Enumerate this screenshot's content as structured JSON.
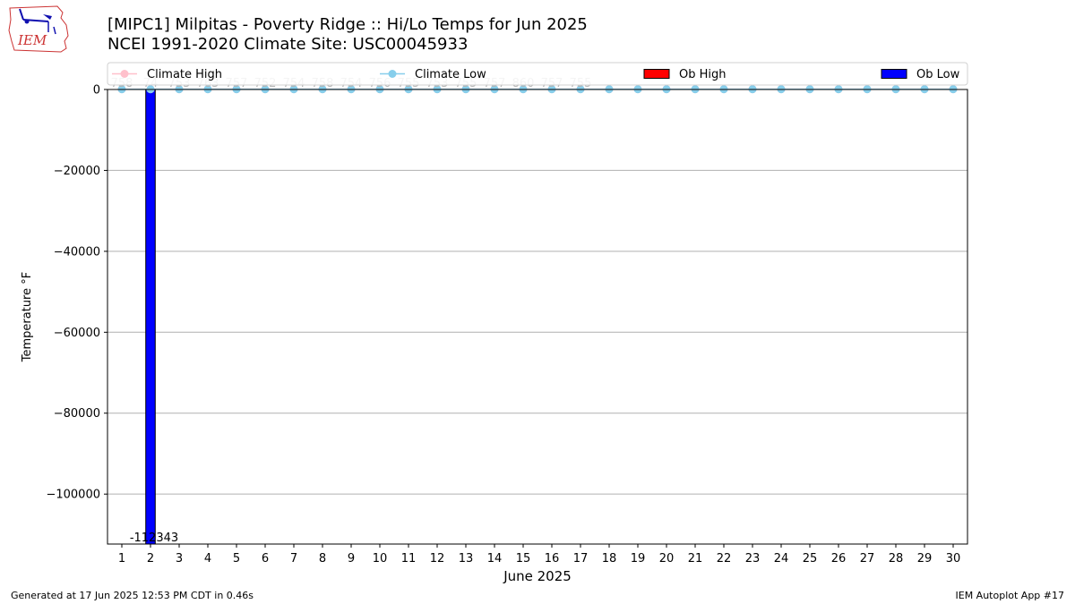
{
  "header": {
    "title": "[MIPC1] Milpitas - Poverty Ridge :: Hi/Lo Temps for Jun 2025",
    "subtitle": "NCEI 1991-2020 Climate Site: USC00045933"
  },
  "logo": {
    "text": "IEM"
  },
  "footer": {
    "generated": "Generated at 17 Jun 2025 12:53 PM CDT in 0.46s",
    "app": "IEM Autoplot App #17"
  },
  "colors": {
    "climate_high": "#ffc0cb",
    "climate_low": "#87ceeb",
    "ob_high": "#ff0000",
    "ob_low": "#0000ff",
    "grid": "#b0b0b0",
    "range_labels": "#b5b5b5"
  },
  "chart_data": {
    "type": "bar",
    "xlabel": "June 2025",
    "ylabel": "Temperature °F",
    "xlim": [
      0.5,
      30.5
    ],
    "ylim": [
      -112343,
      0
    ],
    "x_ticks": [
      1,
      2,
      3,
      4,
      5,
      6,
      7,
      8,
      9,
      10,
      11,
      12,
      13,
      14,
      15,
      16,
      17,
      18,
      19,
      20,
      21,
      22,
      23,
      24,
      25,
      26,
      27,
      28,
      29,
      30
    ],
    "y_ticks": [
      0,
      -20000,
      -40000,
      -60000,
      -80000,
      -100000
    ],
    "y_tick_labels": [
      "0",
      "−20000",
      "−40000",
      "−60000",
      "−80000",
      "−100000"
    ],
    "grid": "horizontal",
    "legend": {
      "placement": "top",
      "entries": [
        {
          "label": "Climate High",
          "kind": "line",
          "color": "#ffc0cb"
        },
        {
          "label": "Climate Low",
          "kind": "line",
          "color": "#87ceeb"
        },
        {
          "label": "Ob High",
          "kind": "bar",
          "color": "#ff0000"
        },
        {
          "label": "Ob Low",
          "kind": "bar",
          "color": "#0000ff"
        }
      ]
    },
    "series": [
      {
        "name": "Climate High",
        "kind": "line",
        "values": [
          74,
          74,
          74,
          74,
          74,
          74,
          74,
          74,
          74,
          74,
          74,
          74,
          74,
          74,
          74,
          75,
          75,
          75,
          75,
          75,
          75,
          75,
          75,
          75,
          75,
          75,
          75,
          75,
          75,
          75
        ]
      },
      {
        "name": "Climate Low",
        "kind": "line",
        "values": [
          56,
          56,
          56,
          56,
          56,
          56,
          56,
          56,
          56,
          56,
          56,
          56,
          56,
          56,
          56,
          56,
          56,
          56,
          56,
          56,
          57,
          57,
          57,
          57,
          57,
          57,
          57,
          57,
          57,
          57
        ]
      },
      {
        "name": "Ob Low",
        "kind": "bar",
        "bars": [
          {
            "x": 2,
            "value": -112343,
            "label": "-112343"
          }
        ]
      }
    ],
    "range_labels": [
      {
        "x": 1,
        "text": "758"
      },
      {
        "x": 2,
        "text": "74"
      },
      {
        "x": 3,
        "text": "753"
      },
      {
        "x": 4,
        "text": "763"
      },
      {
        "x": 5,
        "text": "757"
      },
      {
        "x": 6,
        "text": "752"
      },
      {
        "x": 7,
        "text": "754"
      },
      {
        "x": 8,
        "text": "758"
      },
      {
        "x": 9,
        "text": "754"
      },
      {
        "x": 10,
        "text": "756"
      },
      {
        "x": 11,
        "text": "755"
      },
      {
        "x": 12,
        "text": "753"
      },
      {
        "x": 13,
        "text": "755"
      },
      {
        "x": 14,
        "text": "757"
      },
      {
        "x": 15,
        "text": "860"
      },
      {
        "x": 16,
        "text": "757"
      },
      {
        "x": 17,
        "text": "755"
      }
    ]
  }
}
